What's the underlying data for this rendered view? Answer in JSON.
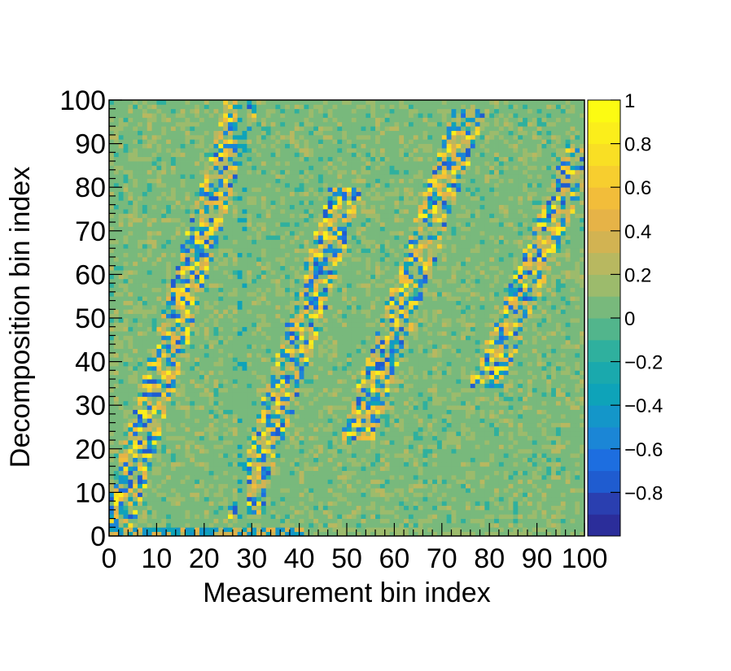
{
  "chart_data": {
    "type": "heatmap",
    "title": "",
    "xlabel": "Measurement bin index",
    "ylabel": "Decomposition bin index",
    "xlim": [
      0,
      100
    ],
    "ylim": [
      0,
      100
    ],
    "nbins_x": 100,
    "nbins_y": 100,
    "zlim": [
      -1,
      1
    ],
    "x_tick_labels": [
      "0",
      "10",
      "20",
      "30",
      "40",
      "50",
      "60",
      "70",
      "80",
      "90",
      "100"
    ],
    "y_tick_labels": [
      "0",
      "10",
      "20",
      "30",
      "40",
      "50",
      "60",
      "70",
      "80",
      "90",
      "100"
    ],
    "colorbar_tick_labels": [
      "1",
      "0.8",
      "0.6",
      "0.4",
      "0.2",
      "0",
      "−0.2",
      "−0.4",
      "−0.6",
      "−0.8"
    ],
    "colorbar_tick_values": [
      1,
      0.8,
      0.6,
      0.4,
      0.2,
      0,
      -0.2,
      -0.4,
      -0.6,
      -0.8
    ],
    "colormap": [
      "#2b2d9a",
      "#2a3fb0",
      "#1f5cd0",
      "#1d6ee0",
      "#1b86d6",
      "#1496c9",
      "#0ea3b9",
      "#1aa9ad",
      "#2fb09e",
      "#52b58c",
      "#78b97c",
      "#9cbb6c",
      "#b8b860",
      "#d2b352",
      "#e6b347",
      "#f2bd3a",
      "#f7ce2f",
      "#f9df24",
      "#fbee1b",
      "#fcfb12"
    ],
    "background_value": 0.0,
    "dominant_features": [
      {
        "name": "diagonal band A",
        "x": [
          1,
          28
        ],
        "y": [
          0,
          100
        ],
        "values": "mixed -0.5..0.6"
      },
      {
        "name": "diagonal band B",
        "x": [
          28,
          50
        ],
        "y": [
          0,
          80
        ],
        "values": "mixed -0.5..0.5"
      },
      {
        "name": "diagonal band C",
        "x": [
          50,
          76
        ],
        "y": [
          20,
          100
        ],
        "values": "mixed -0.6..0.9"
      },
      {
        "name": "diagonal band D",
        "x": [
          78,
          100
        ],
        "y": [
          30,
          90
        ],
        "values": "mixed -0.5..0.6"
      }
    ],
    "grid": false,
    "legend": "colorbar-right"
  }
}
